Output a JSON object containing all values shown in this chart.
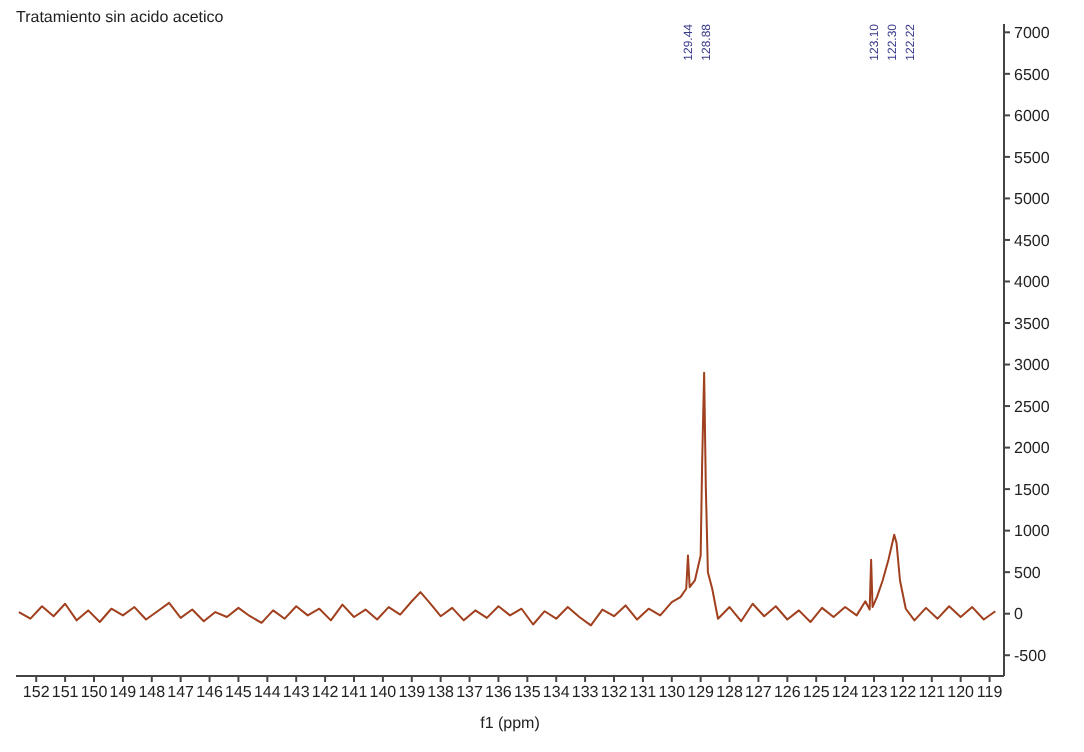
{
  "chart_data": {
    "type": "line",
    "title": "Tratamiento sin acido acetico",
    "xlabel": "f1 (ppm)",
    "x": [
      152.6,
      152.2,
      151.8,
      151.4,
      151.0,
      150.6,
      150.2,
      149.8,
      149.4,
      149.0,
      148.6,
      148.2,
      147.8,
      147.4,
      147.0,
      146.6,
      146.2,
      145.8,
      145.4,
      145.0,
      144.6,
      144.2,
      143.8,
      143.4,
      143.0,
      142.6,
      142.2,
      141.8,
      141.4,
      141.0,
      140.6,
      140.2,
      139.8,
      139.4,
      139.0,
      138.7,
      138.4,
      138.0,
      137.6,
      137.2,
      136.8,
      136.4,
      136.0,
      135.6,
      135.2,
      134.8,
      134.4,
      134.0,
      133.6,
      133.2,
      132.8,
      132.4,
      132.0,
      131.6,
      131.2,
      130.8,
      130.4,
      130.0,
      129.7,
      129.5,
      129.44,
      129.38,
      129.2,
      129.0,
      128.95,
      128.88,
      128.82,
      128.75,
      128.6,
      128.4,
      128.0,
      127.6,
      127.2,
      126.8,
      126.4,
      126.0,
      125.6,
      125.2,
      124.8,
      124.4,
      124.0,
      123.6,
      123.3,
      123.15,
      123.1,
      123.05,
      122.9,
      122.7,
      122.5,
      122.3,
      122.22,
      122.1,
      121.9,
      121.6,
      121.2,
      120.8,
      120.4,
      120.0,
      119.6,
      119.2,
      118.8
    ],
    "series": [
      {
        "color": "#a0401e",
        "values": [
          20,
          -60,
          90,
          -30,
          120,
          -80,
          40,
          -100,
          60,
          -20,
          80,
          -70,
          30,
          130,
          -50,
          50,
          -90,
          20,
          -40,
          70,
          -30,
          -110,
          40,
          -60,
          90,
          -20,
          60,
          -80,
          110,
          -40,
          50,
          -70,
          80,
          -10,
          150,
          260,
          140,
          -30,
          70,
          -80,
          40,
          -50,
          90,
          -20,
          60,
          -130,
          30,
          -60,
          80,
          -40,
          -140,
          50,
          -30,
          100,
          -70,
          60,
          -20,
          140,
          200,
          300,
          700,
          320,
          400,
          700,
          1800,
          2900,
          1500,
          500,
          300,
          -60,
          80,
          -90,
          120,
          -30,
          90,
          -70,
          40,
          -100,
          70,
          -40,
          80,
          -20,
          150,
          50,
          650,
          80,
          200,
          400,
          650,
          950,
          850,
          400,
          60,
          -80,
          70,
          -60,
          90,
          -40,
          80,
          -70,
          30
        ]
      }
    ],
    "xlim": [
      152.7,
      118.5
    ],
    "xticks": [
      152,
      151,
      150,
      149,
      148,
      147,
      146,
      145,
      144,
      143,
      142,
      141,
      140,
      139,
      138,
      137,
      136,
      135,
      134,
      133,
      132,
      131,
      130,
      129,
      128,
      127,
      126,
      125,
      124,
      123,
      122,
      121,
      120,
      119
    ],
    "ylim": [
      -750,
      7100
    ],
    "yticks": [
      -500,
      0,
      500,
      1000,
      1500,
      2000,
      2500,
      3000,
      3500,
      4000,
      4500,
      5000,
      5500,
      6000,
      6500,
      7000
    ],
    "annotations": [
      "129.44",
      "128.88",
      "123.10",
      "122.30",
      "122.22"
    ],
    "grid": false,
    "marker": "none",
    "line_style": "solid"
  }
}
